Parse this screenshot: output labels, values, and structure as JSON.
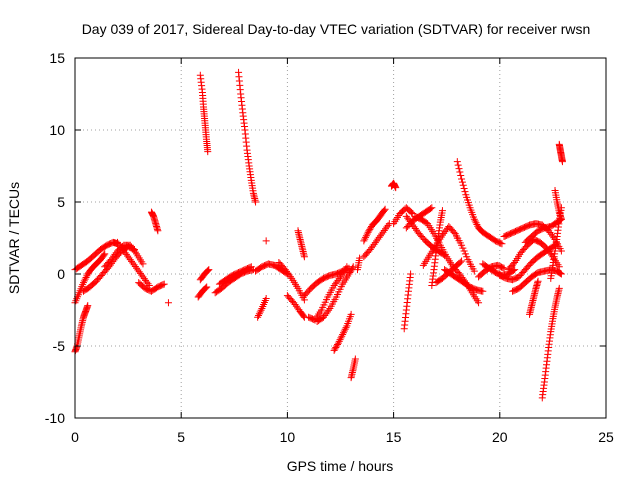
{
  "chart_data": {
    "type": "scatter",
    "title": "Day 039 of 2017, Sidereal Day-to-day VTEC variation (SDTVAR) for receiver rwsn",
    "xlabel": "GPS time / hours",
    "ylabel": "SDTVAR / TECUs",
    "xlim": [
      0,
      25
    ],
    "ylim": [
      -10,
      15
    ],
    "xticks": [
      "0",
      "5",
      "10",
      "15",
      "20",
      "25"
    ],
    "yticks": [
      "-10",
      "-5",
      "0",
      "5",
      "10",
      "15"
    ],
    "grid": true,
    "marker": "+",
    "color": "#ff0000",
    "series": [
      {
        "name": "s01",
        "x": [
          0.0,
          0.1,
          0.2,
          0.3,
          0.4,
          0.5,
          0.6
        ],
        "y": [
          -5.4,
          -5.0,
          -4.3,
          -3.6,
          -3.0,
          -2.6,
          -2.2
        ]
      },
      {
        "name": "s02",
        "x": [
          0.0,
          0.2,
          0.4,
          0.6,
          0.8,
          1.0,
          1.2,
          1.4
        ],
        "y": [
          -2.0,
          -1.3,
          -0.6,
          0.0,
          0.4,
          0.7,
          1.0,
          1.4
        ]
      },
      {
        "name": "s03",
        "x": [
          0.0,
          0.3,
          0.6,
          0.9,
          1.2,
          1.5,
          1.8,
          2.0
        ],
        "y": [
          0.3,
          0.6,
          0.9,
          1.3,
          1.7,
          2.0,
          2.2,
          2.1
        ]
      },
      {
        "name": "s04",
        "x": [
          0.4,
          0.7,
          1.0,
          1.3,
          1.6,
          1.9,
          2.2,
          2.5,
          2.8
        ],
        "y": [
          -1.2,
          -0.9,
          -0.5,
          0.0,
          0.5,
          1.1,
          1.6,
          1.9,
          1.7
        ]
      },
      {
        "name": "s05",
        "x": [
          1.4,
          1.7,
          2.0,
          2.3,
          2.6,
          2.9,
          3.2
        ],
        "y": [
          0.5,
          1.0,
          1.6,
          2.0,
          2.0,
          1.4,
          0.7
        ]
      },
      {
        "name": "s06",
        "x": [
          2.0,
          2.3,
          2.6,
          2.9,
          3.2,
          3.5
        ],
        "y": [
          2.2,
          1.6,
          1.0,
          0.4,
          -0.2,
          -0.8
        ]
      },
      {
        "name": "s07",
        "x": [
          3.0,
          3.3,
          3.6,
          3.9,
          4.2
        ],
        "y": [
          -0.6,
          -1.0,
          -1.2,
          -0.9,
          -0.7
        ]
      },
      {
        "name": "s08",
        "x": [
          3.6,
          3.7,
          3.8,
          3.9
        ],
        "y": [
          4.3,
          4.0,
          3.5,
          3.0
        ]
      },
      {
        "name": "s09",
        "x": [
          4.4
        ],
        "y": [
          -2.0
        ]
      },
      {
        "name": "s10",
        "x": [
          5.9,
          6.0,
          6.05,
          6.1,
          6.15,
          6.2,
          6.25
        ],
        "y": [
          13.8,
          12.6,
          11.6,
          10.8,
          10.0,
          9.2,
          8.5
        ]
      },
      {
        "name": "s11",
        "x": [
          5.8,
          6.0,
          6.2
        ],
        "y": [
          -1.6,
          -1.2,
          -0.9
        ]
      },
      {
        "name": "s12",
        "x": [
          5.9,
          6.1,
          6.3
        ],
        "y": [
          -0.4,
          0.0,
          0.3
        ]
      },
      {
        "name": "s13",
        "x": [
          6.6,
          6.9,
          7.2,
          7.5,
          7.8,
          8.1,
          8.4
        ],
        "y": [
          -1.3,
          -1.0,
          -0.6,
          -0.3,
          0.0,
          0.2,
          0.3
        ]
      },
      {
        "name": "s14",
        "x": [
          6.8,
          7.1,
          7.4,
          7.7,
          8.0,
          8.3
        ],
        "y": [
          -0.7,
          -0.4,
          -0.1,
          0.1,
          0.3,
          0.5
        ]
      },
      {
        "name": "s15",
        "x": [
          7.7,
          7.8,
          7.9,
          8.0,
          8.1,
          8.2,
          8.3,
          8.4,
          8.5
        ],
        "y": [
          14.0,
          12.5,
          11.2,
          10.0,
          8.6,
          7.5,
          6.5,
          5.6,
          5.0
        ]
      },
      {
        "name": "s16",
        "x": [
          8.5,
          8.8,
          9.1,
          9.4,
          9.7,
          10.0
        ],
        "y": [
          0.2,
          0.5,
          0.7,
          0.6,
          0.3,
          0.0
        ]
      },
      {
        "name": "s17",
        "x": [
          8.6,
          8.8,
          9.0
        ],
        "y": [
          -3.0,
          -2.4,
          -1.7
        ]
      },
      {
        "name": "s18",
        "x": [
          9.0
        ],
        "y": [
          2.3
        ]
      },
      {
        "name": "s19",
        "x": [
          9.6,
          9.9,
          10.2,
          10.5,
          10.8
        ],
        "y": [
          0.8,
          0.3,
          -0.3,
          -1.0,
          -1.8
        ]
      },
      {
        "name": "s20",
        "x": [
          10.0,
          10.3,
          10.6,
          10.8
        ],
        "y": [
          -1.5,
          -2.0,
          -2.6,
          -3.0
        ]
      },
      {
        "name": "s21",
        "x": [
          10.5,
          10.6,
          10.7,
          10.8
        ],
        "y": [
          3.0,
          2.4,
          1.8,
          1.2
        ]
      },
      {
        "name": "s22",
        "x": [
          10.8,
          11.1,
          11.4,
          11.7,
          12.0,
          12.3,
          12.6,
          12.9
        ],
        "y": [
          -1.5,
          -1.0,
          -0.6,
          -0.3,
          -0.1,
          0.0,
          0.2,
          0.4
        ]
      },
      {
        "name": "s23",
        "x": [
          11.0,
          11.3,
          11.6,
          11.9,
          12.2,
          12.5,
          12.8
        ],
        "y": [
          -3.0,
          -3.2,
          -2.5,
          -1.6,
          -0.8,
          -0.2,
          0.5
        ]
      },
      {
        "name": "s24",
        "x": [
          11.4,
          11.7,
          12.0,
          12.3,
          12.6,
          12.9,
          13.1
        ],
        "y": [
          -3.3,
          -3.0,
          -2.4,
          -1.6,
          -0.7,
          0.0,
          0.5
        ]
      },
      {
        "name": "s25",
        "x": [
          12.2,
          12.4,
          12.6,
          12.8,
          13.0
        ],
        "y": [
          -5.3,
          -4.8,
          -4.2,
          -3.6,
          -2.8
        ]
      },
      {
        "name": "s26",
        "x": [
          13.0,
          13.1,
          13.2
        ],
        "y": [
          -7.2,
          -6.6,
          -5.9
        ]
      },
      {
        "name": "s27",
        "x": [
          13.3,
          13.4
        ],
        "y": [
          0.3,
          1.1
        ]
      },
      {
        "name": "s28",
        "x": [
          13.6,
          13.8,
          14.0,
          14.2,
          14.4,
          14.6
        ],
        "y": [
          2.3,
          2.9,
          3.4,
          3.7,
          4.1,
          4.5
        ]
      },
      {
        "name": "s29",
        "x": [
          13.6,
          13.9,
          14.2,
          14.5,
          14.8
        ],
        "y": [
          1.2,
          1.7,
          2.3,
          2.9,
          3.5
        ]
      },
      {
        "name": "s30",
        "x": [
          14.9,
          15.0,
          15.1
        ],
        "y": [
          6.1,
          6.3,
          6.0
        ]
      },
      {
        "name": "s31",
        "x": [
          15.0,
          15.3,
          15.6,
          15.9
        ],
        "y": [
          3.5,
          4.2,
          4.6,
          4.2
        ]
      },
      {
        "name": "s32",
        "x": [
          15.5,
          15.6,
          15.7,
          15.8
        ],
        "y": [
          -3.8,
          -2.5,
          -1.2,
          0.0
        ]
      },
      {
        "name": "s33",
        "x": [
          15.6,
          15.9,
          16.2,
          16.5,
          16.8,
          17.1,
          17.4
        ],
        "y": [
          4.0,
          3.4,
          2.8,
          2.3,
          1.9,
          1.6,
          1.3
        ]
      },
      {
        "name": "s34",
        "x": [
          15.6,
          15.9,
          16.2,
          16.5,
          16.8
        ],
        "y": [
          3.2,
          3.7,
          4.0,
          4.3,
          4.6
        ]
      },
      {
        "name": "s35",
        "x": [
          16.0,
          16.3,
          16.6,
          16.9,
          17.2,
          17.5,
          17.8,
          18.1,
          18.4,
          18.7,
          19.0
        ],
        "y": [
          4.0,
          3.8,
          3.5,
          2.8,
          2.0,
          1.2,
          0.5,
          0.0,
          -0.6,
          -1.3,
          -2.0
        ]
      },
      {
        "name": "s36",
        "x": [
          16.4,
          16.7,
          17.0,
          17.3,
          17.6,
          17.9,
          18.2,
          18.5,
          18.8
        ],
        "y": [
          0.6,
          1.3,
          2.0,
          2.7,
          3.3,
          2.8,
          2.0,
          1.0,
          0.2
        ]
      },
      {
        "name": "s37",
        "x": [
          16.8,
          16.9,
          17.0,
          17.1,
          17.2,
          17.3
        ],
        "y": [
          -0.8,
          0.3,
          1.5,
          2.6,
          3.6,
          4.4
        ]
      },
      {
        "name": "s38",
        "x": [
          17.4,
          17.7,
          18.0,
          18.3,
          18.6,
          18.9,
          19.2
        ],
        "y": [
          0.3,
          0.0,
          -0.3,
          -0.6,
          -0.9,
          -1.1,
          -1.2
        ]
      },
      {
        "name": "s39",
        "x": [
          17.0,
          17.3,
          17.6,
          17.9,
          18.2
        ],
        "y": [
          -0.6,
          -0.3,
          0.1,
          0.5,
          0.9
        ]
      },
      {
        "name": "s40",
        "x": [
          18.0,
          18.2,
          18.4,
          18.6,
          18.8,
          19.0,
          19.2,
          19.5,
          19.8,
          20.1
        ],
        "y": [
          7.8,
          6.6,
          5.5,
          4.6,
          3.8,
          3.2,
          2.9,
          2.6,
          2.3,
          2.1
        ]
      },
      {
        "name": "s41",
        "x": [
          18.0
        ],
        "y": [
          2.5
        ]
      },
      {
        "name": "s42",
        "x": [
          19.0,
          19.3,
          19.6,
          19.9,
          20.2
        ],
        "y": [
          -0.2,
          0.2,
          0.5,
          0.6,
          0.4
        ]
      },
      {
        "name": "s43",
        "x": [
          19.2,
          19.5,
          19.8,
          20.1,
          20.4,
          20.7
        ],
        "y": [
          0.7,
          0.4,
          0.1,
          -0.1,
          0.0,
          0.3
        ]
      },
      {
        "name": "s44",
        "x": [
          20.0,
          20.3,
          20.6,
          20.9,
          21.2,
          21.5,
          21.8,
          22.1,
          22.4,
          22.7
        ],
        "y": [
          -0.1,
          -0.3,
          -0.4,
          -0.2,
          0.3,
          0.8,
          1.2,
          1.5,
          1.8,
          2.1
        ]
      },
      {
        "name": "s45",
        "x": [
          20.4,
          20.7,
          21.0,
          21.3,
          21.6,
          21.9,
          22.2,
          22.5,
          22.8
        ],
        "y": [
          0.3,
          0.8,
          1.5,
          2.0,
          2.4,
          2.2,
          1.8,
          1.2,
          0.5
        ]
      },
      {
        "name": "s46",
        "x": [
          20.6,
          20.9,
          21.2,
          21.5,
          21.8,
          22.1,
          22.4,
          22.7,
          22.9
        ],
        "y": [
          -1.2,
          -1.0,
          -0.6,
          -0.2,
          0.1,
          0.2,
          0.3,
          0.2,
          0.0
        ]
      },
      {
        "name": "s47",
        "x": [
          20.2,
          20.5,
          20.8,
          21.1,
          21.4,
          21.7,
          22.0,
          22.3,
          22.6,
          22.9
        ],
        "y": [
          2.6,
          2.8,
          3.0,
          3.2,
          3.4,
          3.5,
          3.4,
          3.0,
          2.4,
          1.6
        ]
      },
      {
        "name": "s48",
        "x": [
          21.2,
          21.5,
          21.8,
          22.1,
          22.4,
          22.7,
          22.9
        ],
        "y": [
          2.2,
          2.6,
          3.0,
          3.2,
          3.3,
          3.6,
          3.8
        ]
      },
      {
        "name": "s49",
        "x": [
          21.4,
          21.5,
          21.6,
          21.7,
          21.8
        ],
        "y": [
          -2.8,
          -2.2,
          -1.6,
          -1.0,
          -0.5
        ]
      },
      {
        "name": "s50",
        "x": [
          22.0,
          22.1,
          22.2,
          22.3,
          22.4,
          22.5,
          22.6,
          22.7,
          22.8
        ],
        "y": [
          -8.6,
          -7.5,
          -6.3,
          -5.1,
          -4.0,
          -3.1,
          -2.3,
          -1.6,
          -1.0
        ]
      },
      {
        "name": "s51",
        "x": [
          22.4,
          22.5,
          22.6,
          22.7,
          22.8,
          22.9
        ],
        "y": [
          -0.3,
          0.6,
          1.6,
          2.6,
          3.7,
          4.6
        ]
      },
      {
        "name": "s52",
        "x": [
          22.6,
          22.7,
          22.8,
          22.9
        ],
        "y": [
          5.8,
          5.0,
          4.3,
          3.8
        ]
      },
      {
        "name": "s53",
        "x": [
          22.8,
          22.85,
          22.9,
          22.95
        ],
        "y": [
          9.0,
          8.6,
          8.2,
          7.8
        ]
      }
    ]
  }
}
